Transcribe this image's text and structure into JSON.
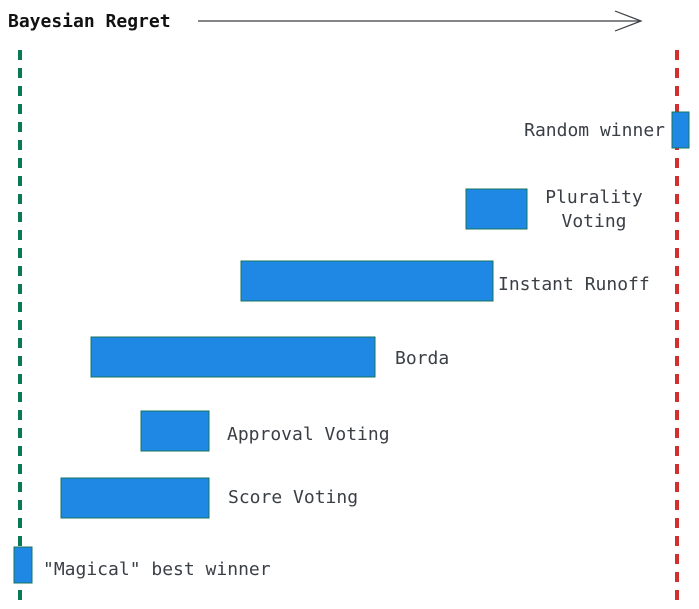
{
  "title": "Bayesian Regret",
  "colors": {
    "bar_fill": "#1f88e5",
    "bar_stroke": "#15735f",
    "best_line": "#0a7a52",
    "random_line": "#d32f2f",
    "arrow": "#3a3f45"
  },
  "methods": [
    {
      "label": "Random winner"
    },
    {
      "label": "Plurality Voting"
    },
    {
      "label": "Instant Runoff"
    },
    {
      "label": "Borda"
    },
    {
      "label": "Approval Voting"
    },
    {
      "label": "Score Voting"
    },
    {
      "label": "\"Magical\" best winner"
    }
  ]
}
